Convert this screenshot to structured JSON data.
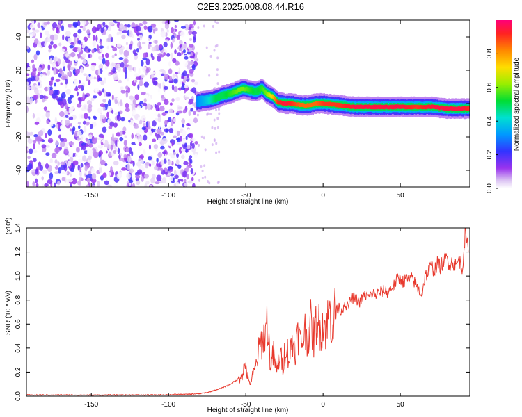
{
  "title": "C2E3.2025.008.08.44.R16",
  "chart_data": [
    {
      "type": "heatmap",
      "xlabel": "Height of straight line (km)",
      "ylabel": "Frequency (Hz)",
      "xlim": [
        -192,
        95
      ],
      "ylim": [
        -50,
        50
      ],
      "xticks": [
        -150,
        -100,
        -50,
        0,
        50
      ],
      "yticks": [
        -40,
        -20,
        0,
        20,
        40
      ],
      "colorbar": {
        "label": "Normalized spectral amplitude",
        "range": [
          0.0,
          1.0
        ],
        "ticks": [
          0.0,
          0.2,
          0.4,
          0.6,
          0.8
        ],
        "tick_labels": [
          "0.0",
          "0.2",
          "0.4",
          "0.6",
          "0.8"
        ]
      },
      "noise_region_x": [
        -192,
        -82
      ],
      "ridge": {
        "x": [
          -82,
          -75,
          -70,
          -65,
          -60,
          -55,
          -52,
          -48,
          -44,
          -40,
          -37,
          -33,
          -30,
          -25,
          -20,
          -15,
          -10,
          -5,
          0,
          10,
          20,
          30,
          40,
          50,
          60,
          70,
          80,
          90,
          95
        ],
        "y": [
          1,
          2,
          3,
          5,
          6,
          8,
          9,
          8,
          7,
          9,
          6,
          4,
          1,
          0,
          0,
          -1,
          -1,
          0,
          0,
          -1,
          -2,
          -2,
          -2,
          -2,
          -2,
          -2,
          -3,
          -3,
          -3
        ],
        "amplitude": [
          0.3,
          0.4,
          0.5,
          0.5,
          0.55,
          0.6,
          0.6,
          0.55,
          0.5,
          0.55,
          0.6,
          0.75,
          0.9,
          0.95,
          0.9,
          0.85,
          0.85,
          0.85,
          0.9,
          0.9,
          0.95,
          0.95,
          0.95,
          0.95,
          0.9,
          0.95,
          0.95,
          0.95,
          0.9
        ]
      }
    },
    {
      "type": "line",
      "xlabel": "Height of straight line (km)",
      "ylabel": "SNR (10 * v/v)",
      "multiplier_label": "(x10",
      "multiplier_exp": "4",
      "xlim": [
        -192,
        95
      ],
      "ylim": [
        0.0,
        1.4
      ],
      "xticks": [
        -150,
        -100,
        -50,
        0,
        50
      ],
      "yticks": [
        0.0,
        0.2,
        0.4,
        0.6,
        0.8,
        1.0,
        1.2,
        1.4
      ],
      "ytick_labels": [
        "0.0",
        "0.2",
        "0.4",
        "0.6",
        "0.8",
        "1.0",
        "1.2",
        "1.4"
      ],
      "color": "#e83a2e",
      "series": [
        {
          "x": [
            -192,
            -170,
            -150,
            -130,
            -110,
            -90,
            -80,
            -75,
            -70,
            -65,
            -60,
            -55,
            -52,
            -50,
            -48,
            -46,
            -44,
            -42,
            -40,
            -38,
            -36,
            -34,
            -32,
            -30,
            -28,
            -26,
            -24,
            -22,
            -20,
            -18,
            -16,
            -14,
            -12,
            -10,
            -8,
            -6,
            -4,
            -2,
            0,
            2,
            4,
            6,
            8,
            10,
            12,
            14,
            16,
            18,
            20,
            22,
            24,
            26,
            28,
            30,
            32,
            34,
            36,
            38,
            40,
            42,
            44,
            46,
            48,
            50,
            52,
            54,
            56,
            58,
            60,
            62,
            64,
            66,
            68,
            70,
            72,
            74,
            76,
            78,
            80,
            82,
            84,
            86,
            88,
            90,
            92,
            94
          ],
          "values": [
            0.01,
            0.01,
            0.01,
            0.01,
            0.01,
            0.015,
            0.02,
            0.03,
            0.05,
            0.07,
            0.1,
            0.14,
            0.2,
            0.26,
            0.1,
            0.15,
            0.22,
            0.35,
            0.45,
            0.5,
            0.62,
            0.25,
            0.35,
            0.2,
            0.35,
            0.25,
            0.45,
            0.3,
            0.45,
            0.4,
            0.52,
            0.42,
            0.55,
            0.5,
            0.6,
            0.48,
            0.65,
            0.55,
            0.62,
            0.56,
            0.7,
            0.6,
            0.72,
            0.74,
            0.7,
            0.78,
            0.74,
            0.8,
            0.82,
            0.8,
            0.78,
            0.83,
            0.84,
            0.82,
            0.86,
            0.84,
            0.86,
            0.87,
            0.88,
            0.86,
            0.9,
            0.92,
            0.97,
            0.98,
            0.95,
            0.98,
            0.96,
            0.98,
            0.93,
            0.88,
            0.85,
            1.0,
            1.03,
            1.08,
            1.05,
            1.1,
            1.08,
            1.12,
            1.15,
            1.1,
            1.12,
            1.08,
            1.14,
            1.05,
            1.35,
            1.2
          ]
        }
      ]
    }
  ]
}
